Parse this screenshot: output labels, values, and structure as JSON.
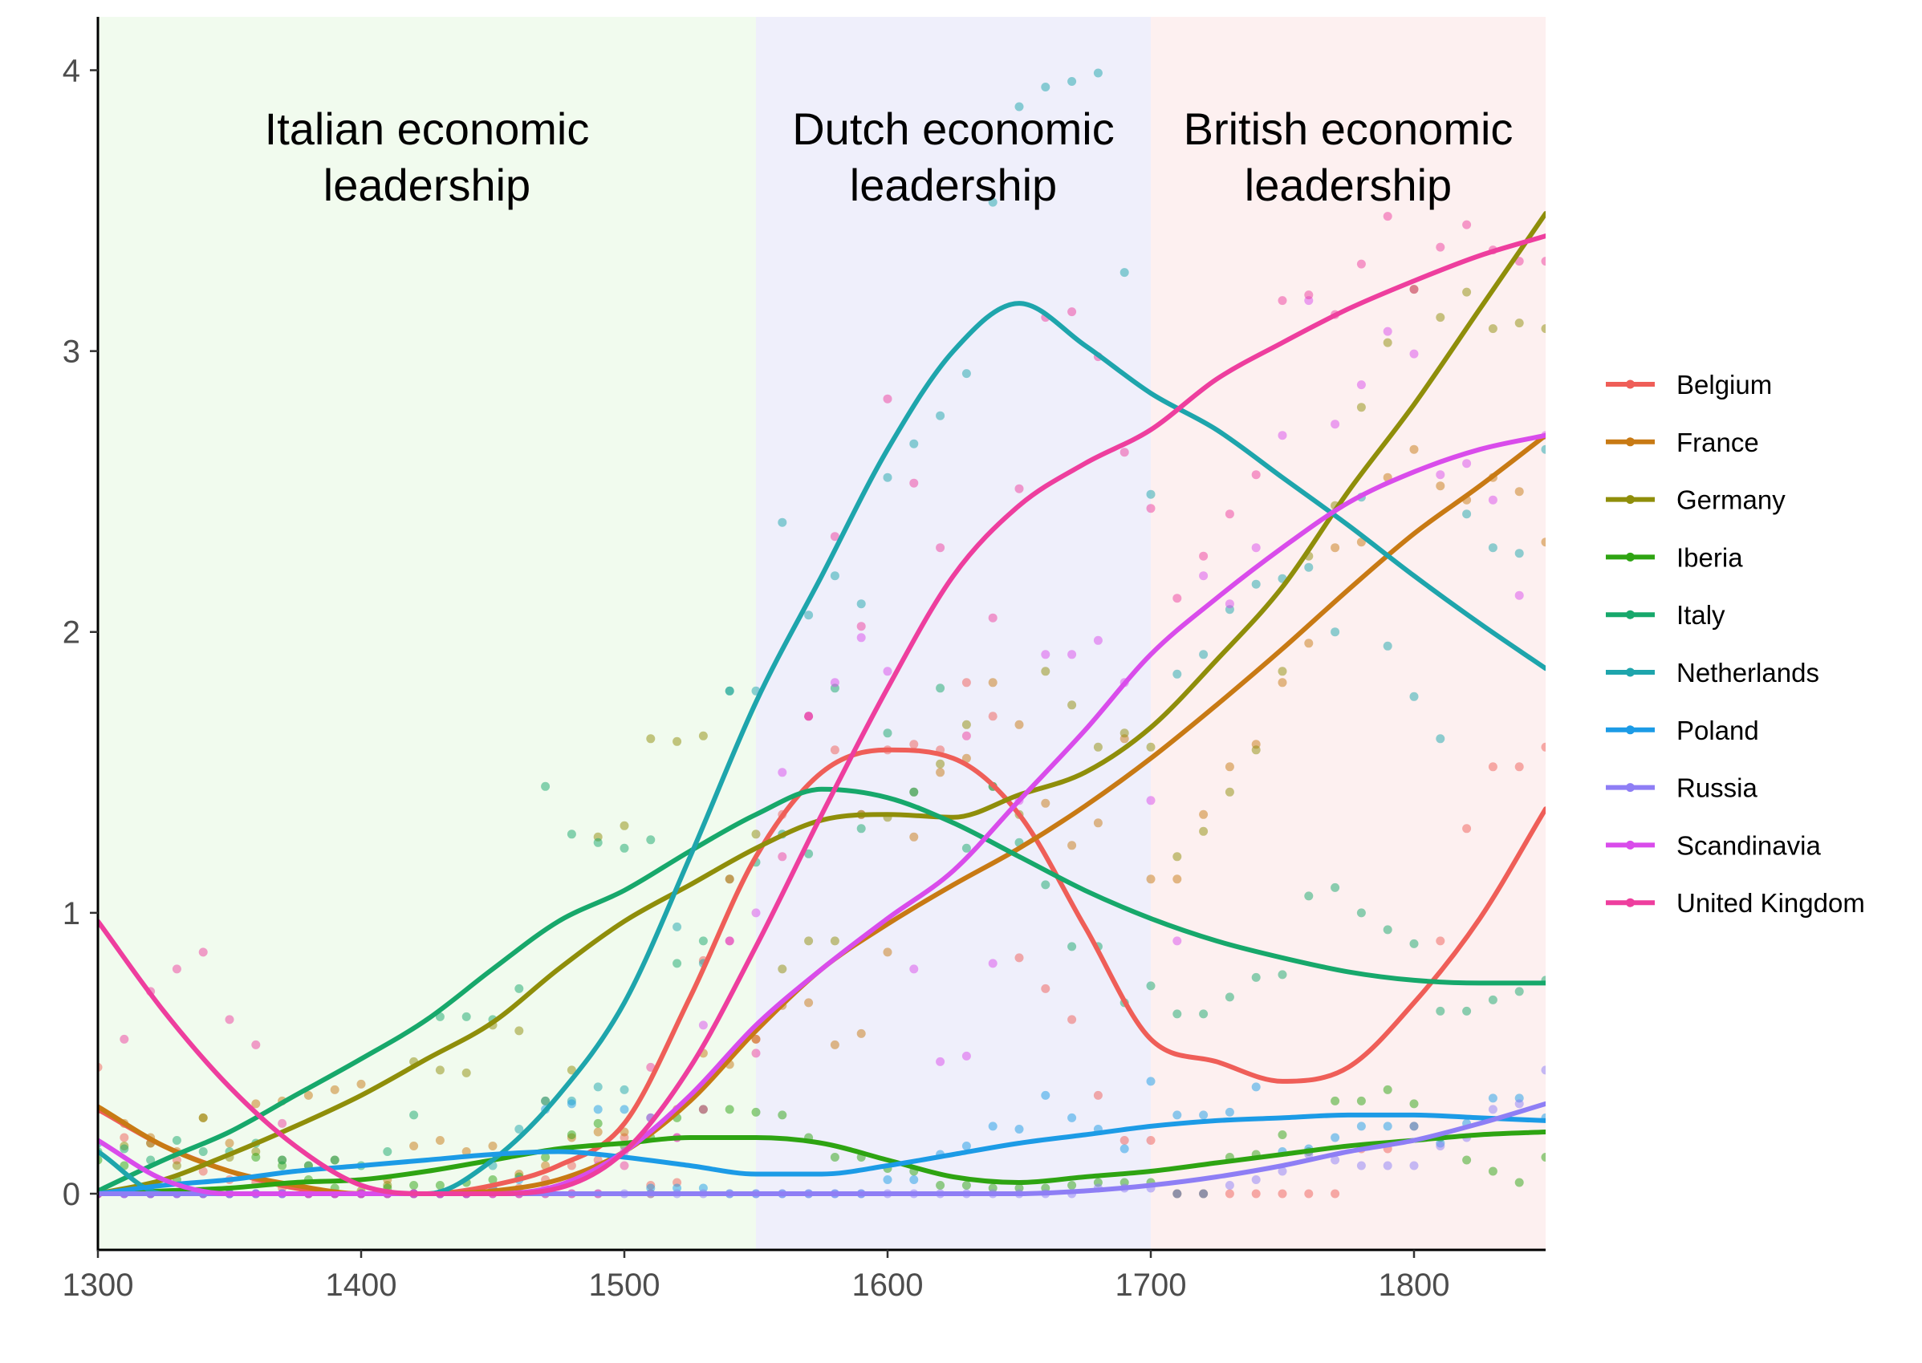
{
  "chart_data": {
    "type": "line",
    "xlim": [
      1300,
      1850
    ],
    "ylim": [
      -0.2,
      4.19
    ],
    "xticks": [
      1300,
      1400,
      1500,
      1600,
      1700,
      1800
    ],
    "yticks": [
      0,
      1,
      2,
      3,
      4
    ],
    "grid": false,
    "legend_position": "right",
    "regions": [
      {
        "label_lines": [
          "Italian economic",
          "leadership"
        ],
        "from": 1300,
        "to": 1550,
        "fill": "#F1FBEE"
      },
      {
        "label_lines": [
          "Dutch economic",
          "leadership"
        ],
        "from": 1550,
        "to": 1700,
        "fill": "#EFEFFB"
      },
      {
        "label_lines": [
          "British economic",
          "leadership"
        ],
        "from": 1700,
        "to": 1850,
        "fill": "#FDF0F0"
      }
    ],
    "smooth_x": [
      1300,
      1325,
      1350,
      1375,
      1400,
      1425,
      1450,
      1475,
      1500,
      1525,
      1550,
      1575,
      1600,
      1625,
      1650,
      1675,
      1700,
      1725,
      1750,
      1775,
      1800,
      1825,
      1850
    ],
    "point_x": [
      1300,
      1310,
      1320,
      1330,
      1340,
      1350,
      1360,
      1370,
      1380,
      1390,
      1400,
      1410,
      1420,
      1430,
      1440,
      1450,
      1460,
      1470,
      1480,
      1490,
      1500,
      1510,
      1520,
      1530,
      1540,
      1550,
      1560,
      1570,
      1580,
      1590,
      1600,
      1610,
      1620,
      1630,
      1640,
      1650,
      1660,
      1670,
      1680,
      1690,
      1700,
      1710,
      1720,
      1730,
      1740,
      1750,
      1760,
      1770,
      1780,
      1790,
      1800,
      1810,
      1820,
      1830,
      1840,
      1850
    ],
    "series": [
      {
        "name": "Belgium",
        "color": "#EF5E58",
        "smooth": [
          0.3,
          0.17,
          0.08,
          0.02,
          0,
          0,
          0.03,
          0.1,
          0.25,
          0.7,
          1.2,
          1.5,
          1.58,
          1.55,
          1.35,
          0.95,
          0.55,
          0.47,
          0.4,
          0.45,
          0.68,
          0.98,
          1.37
        ],
        "points": [
          0.45,
          0.2,
          0.18,
          0.12,
          0.08,
          0.05,
          0.04,
          0.02,
          0,
          0,
          0,
          0,
          0,
          0,
          0,
          0.02,
          0.02,
          0.05,
          0.1,
          0.12,
          0.2,
          0.03,
          0.04,
          0.83,
          1.12,
          0.55,
          1.35,
          1.7,
          1.58,
          1.35,
          1.58,
          1.6,
          1.58,
          1.82,
          1.7,
          0.84,
          0.73,
          0.62,
          0.35,
          0.19,
          0.19,
          0,
          0,
          0,
          0,
          0,
          0,
          0,
          0.16,
          0.16,
          0.24,
          0.9,
          1.3,
          1.52,
          1.52,
          1.59
        ]
      },
      {
        "name": "France",
        "color": "#C87A14",
        "smooth": [
          0.31,
          0.17,
          0.08,
          0.03,
          0,
          0,
          0.01,
          0.05,
          0.15,
          0.33,
          0.58,
          0.8,
          0.96,
          1.1,
          1.23,
          1.38,
          1.55,
          1.74,
          1.94,
          2.15,
          2.35,
          2.52,
          2.7
        ],
        "points": [
          0.3,
          0.25,
          0.2,
          0.15,
          0.27,
          0.18,
          0.32,
          0.33,
          0.35,
          0.37,
          0.39,
          0.05,
          0.17,
          0.19,
          0.15,
          0.17,
          0.07,
          0.1,
          0.2,
          0.22,
          0.22,
          0,
          0.3,
          0.5,
          0.46,
          0.55,
          0.67,
          0.68,
          0.53,
          0.57,
          0.86,
          1.27,
          1.5,
          1.55,
          1.82,
          1.67,
          1.39,
          1.24,
          1.32,
          1.62,
          1.12,
          1.12,
          1.35,
          1.52,
          1.6,
          1.82,
          1.96,
          2.3,
          2.32,
          2.55,
          2.65,
          2.52,
          2.47,
          2.55,
          2.5,
          2.32
        ]
      },
      {
        "name": "Germany",
        "color": "#8F8E0A",
        "smooth": [
          0,
          0.05,
          0.14,
          0.24,
          0.35,
          0.48,
          0.61,
          0.8,
          0.97,
          1.1,
          1.23,
          1.33,
          1.35,
          1.34,
          1.42,
          1.5,
          1.66,
          1.9,
          2.16,
          2.5,
          2.81,
          3.15,
          3.49
        ],
        "points": [
          0,
          0.17,
          0.18,
          0.1,
          0.27,
          0.13,
          0.15,
          0.12,
          0.1,
          0.12,
          0.01,
          0.03,
          0.47,
          0.44,
          0.43,
          0.6,
          0.58,
          0.33,
          0.44,
          1.27,
          1.31,
          1.62,
          1.61,
          1.63,
          1.12,
          1.28,
          0.8,
          0.9,
          0.9,
          1.35,
          1.34,
          1.43,
          1.53,
          1.67,
          1.45,
          1.35,
          1.86,
          1.74,
          1.59,
          1.64,
          1.59,
          1.2,
          1.29,
          1.43,
          1.58,
          1.86,
          2.27,
          2.45,
          2.8,
          3.03,
          3.22,
          3.12,
          3.21,
          3.08,
          3.1,
          3.08
        ]
      },
      {
        "name": "Iberia",
        "color": "#2EA412",
        "smooth": [
          0,
          0.01,
          0.02,
          0.04,
          0.05,
          0.08,
          0.12,
          0.16,
          0.18,
          0.2,
          0.2,
          0.18,
          0.12,
          0.06,
          0.04,
          0.06,
          0.08,
          0.11,
          0.14,
          0.17,
          0.19,
          0.21,
          0.22
        ],
        "points": [
          0.12,
          0.1,
          0,
          0.05,
          0,
          0,
          0.13,
          0.1,
          0.05,
          0.02,
          0,
          0.02,
          0.03,
          0.03,
          0.04,
          0.05,
          0.06,
          0.13,
          0.21,
          0.25,
          0.17,
          0.2,
          0.27,
          0.3,
          0.3,
          0.29,
          0.28,
          0.2,
          0.13,
          0.13,
          0.09,
          0.08,
          0.03,
          0.03,
          0.02,
          0.02,
          0.02,
          0.03,
          0.04,
          0.04,
          0.04,
          0,
          0,
          0.13,
          0.14,
          0.21,
          0.15,
          0.33,
          0.33,
          0.37,
          0.32,
          0.2,
          0.12,
          0.08,
          0.04,
          0.13
        ]
      },
      {
        "name": "Italy",
        "color": "#17A86B",
        "smooth": [
          0.01,
          0.12,
          0.22,
          0.35,
          0.48,
          0.62,
          0.8,
          0.97,
          1.08,
          1.22,
          1.35,
          1.44,
          1.41,
          1.32,
          1.2,
          1.08,
          0.98,
          0.9,
          0.84,
          0.79,
          0.76,
          0.75,
          0.75
        ],
        "points": [
          0.15,
          0.16,
          0.12,
          0.19,
          0.15,
          0.15,
          0.18,
          0.12,
          0.1,
          0.12,
          0.1,
          0.15,
          0.28,
          0.63,
          0.63,
          0.62,
          0.73,
          1.45,
          1.28,
          1.25,
          1.23,
          1.26,
          0.82,
          0.9,
          1.79,
          1.18,
          1.28,
          1.21,
          1.8,
          1.3,
          1.64,
          1.43,
          1.8,
          1.23,
          1.45,
          1.25,
          1.1,
          0.88,
          0.88,
          0.68,
          0.74,
          0.64,
          0.64,
          0.7,
          0.77,
          0.78,
          1.06,
          1.09,
          1.0,
          0.94,
          0.89,
          0.65,
          0.65,
          0.69,
          0.72,
          0.76
        ]
      },
      {
        "name": "Netherlands",
        "color": "#1EA5AC",
        "smooth": [
          0.15,
          0,
          0,
          0,
          0,
          0,
          0.12,
          0.35,
          0.68,
          1.2,
          1.75,
          2.2,
          2.65,
          3.0,
          3.17,
          3.02,
          2.85,
          2.72,
          2.55,
          2.38,
          2.2,
          2.03,
          1.87
        ],
        "points": [
          0.18,
          0,
          0,
          0,
          0,
          0,
          0,
          0,
          0,
          0,
          0,
          0,
          0,
          0,
          0,
          0.1,
          0.23,
          0.33,
          0.33,
          0.38,
          0.37,
          0.27,
          0.95,
          0.82,
          1.79,
          1.79,
          2.39,
          2.06,
          2.2,
          2.1,
          2.55,
          2.67,
          2.77,
          2.92,
          3.53,
          3.87,
          3.94,
          3.96,
          3.99,
          3.28,
          2.49,
          1.85,
          1.92,
          2.08,
          2.17,
          2.19,
          2.23,
          2.0,
          2.48,
          1.95,
          1.77,
          1.62,
          2.42,
          2.3,
          2.28,
          2.65
        ]
      },
      {
        "name": "Poland",
        "color": "#1C9BE6",
        "smooth": [
          0,
          0.03,
          0.05,
          0.08,
          0.1,
          0.12,
          0.14,
          0.15,
          0.13,
          0.1,
          0.07,
          0.07,
          0.1,
          0.14,
          0.18,
          0.21,
          0.24,
          0.26,
          0.27,
          0.28,
          0.28,
          0.27,
          0.26
        ],
        "points": [
          0,
          0,
          0,
          0,
          0,
          0,
          0,
          0,
          0,
          0,
          0,
          0,
          0,
          0,
          0,
          0.02,
          0.05,
          0.3,
          0.32,
          0.3,
          0.3,
          0.02,
          0.02,
          0.02,
          0,
          0,
          0,
          0,
          0,
          0,
          0.05,
          0.05,
          0.14,
          0.17,
          0.24,
          0.23,
          0.35,
          0.27,
          0.23,
          0.16,
          0.4,
          0.28,
          0.28,
          0.29,
          0.38,
          0.15,
          0.16,
          0.2,
          0.24,
          0.24,
          0.24,
          0.18,
          0.25,
          0.34,
          0.34,
          0.27
        ]
      },
      {
        "name": "Russia",
        "color": "#8E7EF5",
        "smooth": [
          0,
          0,
          0,
          0,
          0,
          0,
          0,
          0,
          0,
          0,
          0,
          0,
          0,
          0,
          0,
          0.01,
          0.03,
          0.06,
          0.1,
          0.15,
          0.19,
          0.25,
          0.32
        ],
        "points": [
          0,
          0,
          0,
          0,
          0,
          0,
          0,
          0,
          0,
          0,
          0,
          0,
          0,
          0,
          0,
          0,
          0,
          0,
          0,
          0,
          0,
          0,
          0,
          0,
          0,
          0,
          0,
          0,
          0,
          0,
          0,
          0,
          0,
          0,
          0,
          0,
          0,
          0,
          0.02,
          0.02,
          0.02,
          0,
          0,
          0.03,
          0.05,
          0.08,
          0.14,
          0.12,
          0.1,
          0.1,
          0.1,
          0.17,
          0.2,
          0.3,
          0.32,
          0.44
        ]
      },
      {
        "name": "Scandinavia",
        "color": "#D94CEB",
        "smooth": [
          0.19,
          0.05,
          0,
          0,
          0,
          0,
          0,
          0.03,
          0.15,
          0.35,
          0.6,
          0.8,
          0.98,
          1.15,
          1.4,
          1.65,
          1.92,
          2.12,
          2.3,
          2.46,
          2.57,
          2.65,
          2.7
        ],
        "points": [
          0,
          0,
          0,
          0,
          0,
          0,
          0,
          0,
          0,
          0,
          0,
          0,
          0,
          0,
          0,
          0,
          0,
          0.02,
          0.05,
          0.1,
          0.15,
          0.27,
          0.2,
          0.6,
          0.9,
          1.0,
          1.5,
          1.7,
          1.82,
          1.98,
          1.86,
          0.8,
          0.47,
          0.49,
          0.82,
          1.4,
          1.92,
          1.92,
          1.97,
          1.82,
          1.4,
          0.9,
          2.2,
          2.1,
          2.3,
          2.7,
          3.18,
          2.74,
          2.88,
          3.07,
          2.99,
          2.56,
          2.6,
          2.47,
          2.13,
          2.7
        ]
      },
      {
        "name": "United Kingdom",
        "color": "#EE3E9E",
        "smooth": [
          0.97,
          0.65,
          0.38,
          0.17,
          0.03,
          0,
          0,
          0.02,
          0.15,
          0.45,
          0.88,
          1.35,
          1.8,
          2.2,
          2.45,
          2.6,
          2.72,
          2.9,
          3.03,
          3.15,
          3.25,
          3.34,
          3.41
        ],
        "points": [
          0,
          0.55,
          0.72,
          0.8,
          0.86,
          0.62,
          0.53,
          0.25,
          0,
          0,
          0,
          0,
          0,
          0,
          0,
          0,
          0,
          0,
          0,
          0,
          0.1,
          0.45,
          0.2,
          0.3,
          0.9,
          0.5,
          1.2,
          1.7,
          2.34,
          2.02,
          2.83,
          2.53,
          2.3,
          1.63,
          2.05,
          2.51,
          3.12,
          3.14,
          2.98,
          2.64,
          2.44,
          2.12,
          2.27,
          2.42,
          2.56,
          3.18,
          3.2,
          3.13,
          3.31,
          3.48,
          3.22,
          3.37,
          3.45,
          3.36,
          3.32,
          3.32
        ]
      }
    ]
  }
}
